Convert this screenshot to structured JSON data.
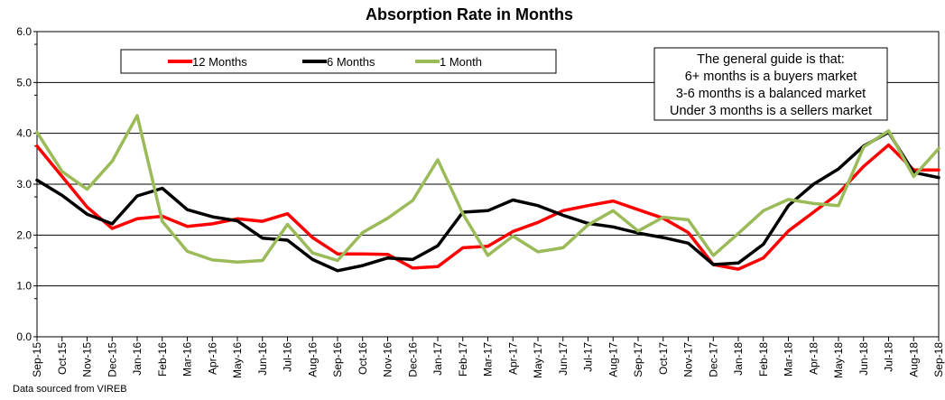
{
  "chart_data": {
    "type": "line",
    "title": "Absorption Rate in Months",
    "source_note": "Data sourced from VIREB",
    "ylim": [
      0,
      6
    ],
    "yticks": [
      "0.0",
      "1.0",
      "2.0",
      "3.0",
      "4.0",
      "5.0",
      "6.0"
    ],
    "grid": true,
    "legend_position": "top-left",
    "annotation": [
      "The general guide is that:",
      "6+ months is a buyers market",
      "3-6 months is a balanced market",
      "Under 3 months is a sellers market"
    ],
    "categories": [
      "Sep-15",
      "Oct-15",
      "Nov-15",
      "Dec-15",
      "Jan-16",
      "Feb-16",
      "Mar-16",
      "Apr-16",
      "May-16",
      "Jun-16",
      "Jul-16",
      "Aug-16",
      "Sep-16",
      "Oct-16",
      "Nov-16",
      "Dec-16",
      "Jan-17",
      "Feb-17",
      "Mar-17",
      "Apr-17",
      "May-17",
      "Jun-17",
      "Jul-17",
      "Aug-17",
      "Sep-17",
      "Oct-17",
      "Nov-17",
      "Dec-17",
      "Jan-18",
      "Feb-18",
      "Mar-18",
      "Apr-18",
      "May-18",
      "Jun-18",
      "Jul-18",
      "Aug-18",
      "Sep-18"
    ],
    "series": [
      {
        "name": "12 Months",
        "color": "#ff0000",
        "values": [
          3.75,
          3.15,
          2.55,
          2.13,
          2.32,
          2.37,
          2.17,
          2.22,
          2.32,
          2.27,
          2.42,
          1.95,
          1.63,
          1.63,
          1.62,
          1.35,
          1.38,
          1.75,
          1.78,
          2.07,
          2.25,
          2.48,
          2.58,
          2.67,
          2.5,
          2.33,
          2.05,
          1.42,
          1.33,
          1.55,
          2.08,
          2.45,
          2.82,
          3.35,
          3.77,
          3.28,
          3.28
        ]
      },
      {
        "name": "6 Months",
        "color": "#000000",
        "values": [
          3.08,
          2.78,
          2.41,
          2.22,
          2.77,
          2.92,
          2.5,
          2.36,
          2.28,
          1.94,
          1.9,
          1.52,
          1.3,
          1.4,
          1.55,
          1.52,
          1.79,
          2.45,
          2.48,
          2.69,
          2.58,
          2.39,
          2.23,
          2.16,
          2.04,
          1.95,
          1.84,
          1.42,
          1.45,
          1.82,
          2.58,
          3.0,
          3.3,
          3.75,
          4.02,
          3.23,
          3.13
        ]
      },
      {
        "name": "1 Month",
        "color": "#9bbb59",
        "values": [
          4.02,
          3.25,
          2.9,
          3.45,
          4.35,
          2.27,
          1.68,
          1.51,
          1.47,
          1.5,
          2.21,
          1.65,
          1.5,
          2.05,
          2.33,
          2.68,
          3.48,
          2.42,
          1.6,
          1.98,
          1.67,
          1.75,
          2.2,
          2.48,
          2.08,
          2.35,
          2.3,
          1.6,
          2.03,
          2.48,
          2.7,
          2.62,
          2.58,
          3.73,
          4.05,
          3.15,
          3.7
        ]
      }
    ]
  }
}
